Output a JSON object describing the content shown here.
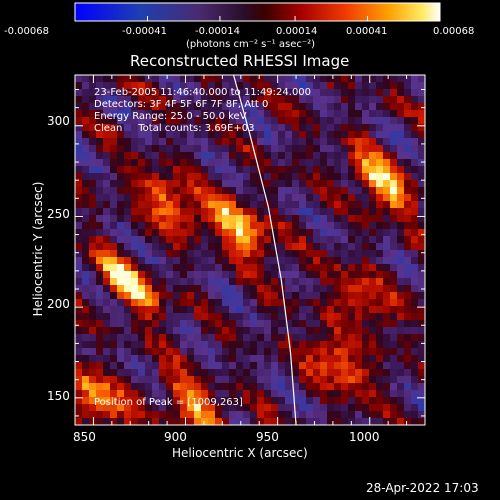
{
  "colorbar": {
    "ticks": [
      "-0.00068",
      "-0.00041",
      "-0.00014",
      "0.00014",
      "0.00041",
      "0.00068"
    ],
    "unit_label": "(photons cm⁻² s⁻¹ asec⁻²)",
    "range": [
      -0.00068,
      0.00068
    ]
  },
  "plot": {
    "title": "Reconstructed RHESSI Image",
    "annotations": [
      "23-Feb-2005 11:46:40.000 to 11:49:24.000",
      "Detectors: 3F 4F 5F 6F 7F 8F, Att 0",
      "Energy Range: 25.0 - 50.0 keV",
      "Clean     Total counts: 3.69E+03"
    ],
    "peak_label": "Position of Peak = [1009,263]"
  },
  "chart_data": {
    "type": "heatmap",
    "title": "Reconstructed RHESSI Image",
    "xlabel": "Heliocentric X (arcsec)",
    "ylabel": "Heliocentric Y (arcsec)",
    "x_ticks": [
      850,
      900,
      950,
      1000
    ],
    "y_ticks": [
      150,
      200,
      250,
      300
    ],
    "xlim": [
      840,
      1030
    ],
    "ylim": [
      135,
      328
    ],
    "peak": [
      1009,
      263
    ],
    "limb_curve": [
      [
        925,
        332
      ],
      [
        935,
        295
      ],
      [
        945,
        255
      ],
      [
        952,
        215
      ],
      [
        957,
        175
      ],
      [
        960,
        135
      ]
    ],
    "colormap": "red-temperature",
    "hotspots": [
      {
        "x": 869,
        "y": 212,
        "value": 1.0
      },
      {
        "x": 891,
        "y": 258,
        "value": 0.85
      },
      {
        "x": 930,
        "y": 243,
        "value": 1.0
      },
      {
        "x": 1006,
        "y": 268,
        "value": 1.0
      },
      {
        "x": 852,
        "y": 150,
        "value": 0.9
      },
      {
        "x": 905,
        "y": 145,
        "value": 0.85
      },
      {
        "x": 982,
        "y": 170,
        "value": 0.85
      },
      {
        "x": 996,
        "y": 204,
        "value": 0.7
      }
    ]
  },
  "footer": {
    "timestamp": "28-Apr-2022 17:03"
  }
}
